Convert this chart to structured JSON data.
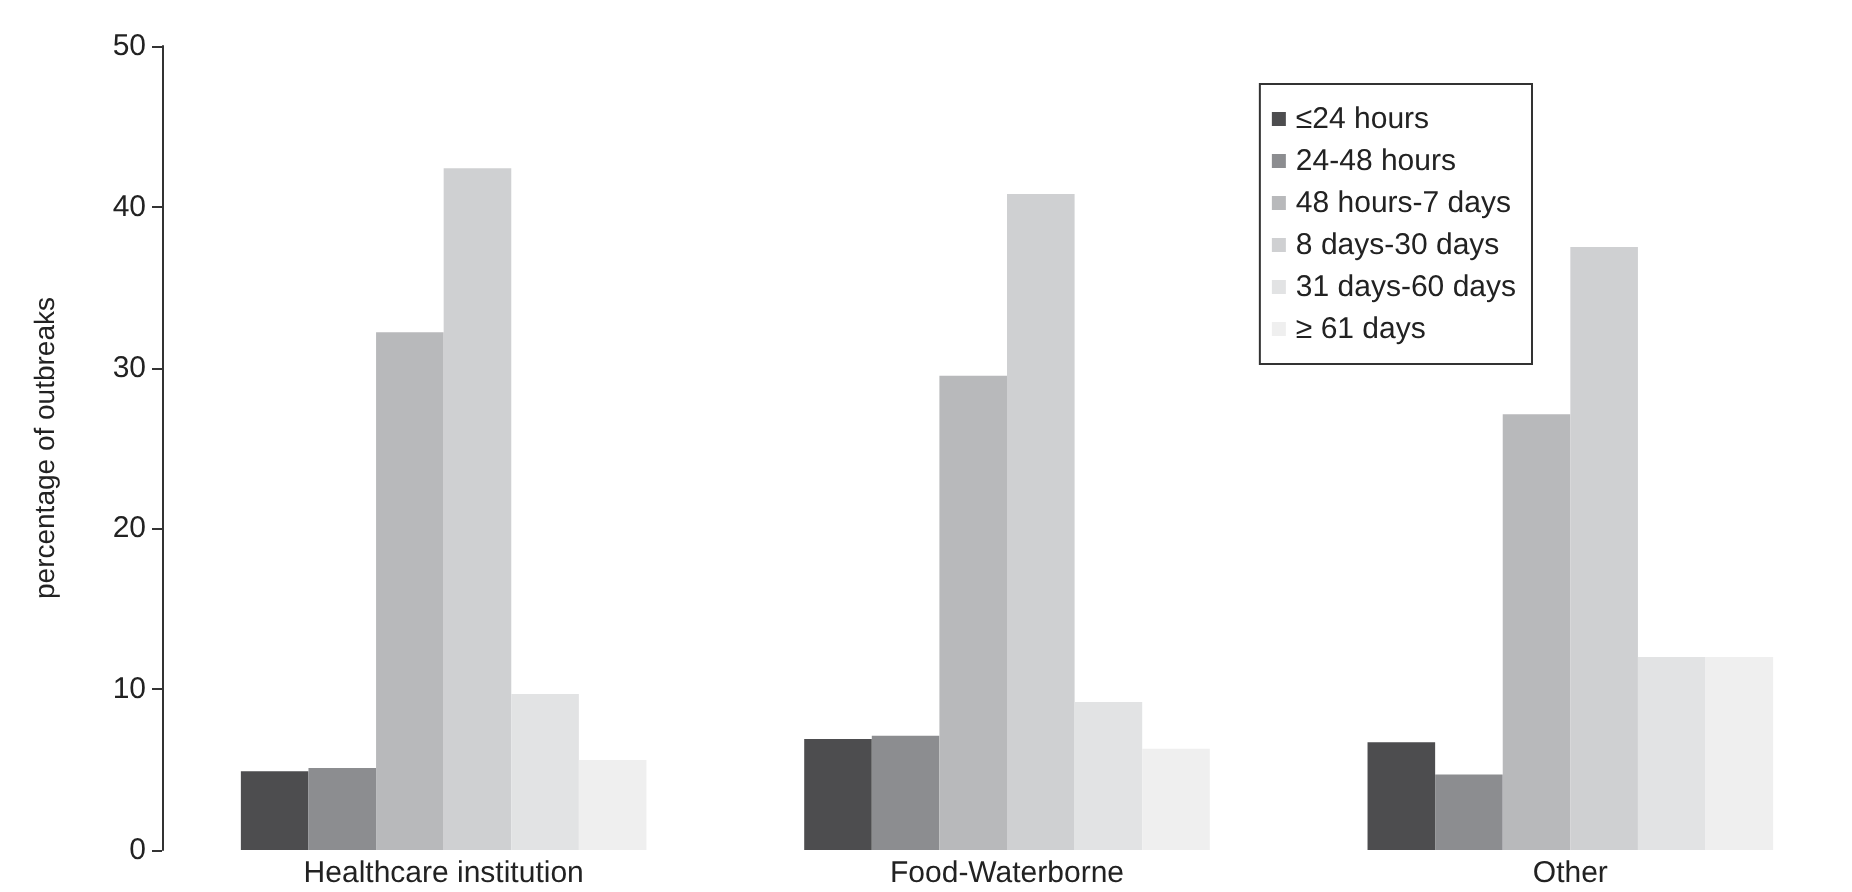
{
  "chart_data": {
    "type": "bar",
    "ylabel": "percentage of outbreaks",
    "categories": [
      "Healthcare institution",
      "Food-Waterborne",
      "Other"
    ],
    "series": [
      {
        "name": "≤24 hours",
        "color": "#4d4d4f",
        "values": [
          4.9,
          6.9,
          6.7
        ]
      },
      {
        "name": "24-48 hours",
        "color": "#8c8d90",
        "values": [
          5.1,
          7.1,
          4.7
        ]
      },
      {
        "name": "48 hours-7 days",
        "color": "#b8b9bb",
        "values": [
          32.2,
          29.5,
          27.1
        ]
      },
      {
        "name": "8 days-30 days",
        "color": "#cfd0d2",
        "values": [
          42.4,
          40.8,
          37.5
        ]
      },
      {
        "name": "31 days-60 days",
        "color": "#e2e3e4",
        "values": [
          9.7,
          9.2,
          12.0
        ]
      },
      {
        "name": "≥ 61 days",
        "color": "#efefef",
        "values": [
          5.6,
          6.3,
          12.0
        ]
      }
    ],
    "ylim": [
      0,
      50
    ],
    "yticks": [
      0,
      10,
      20,
      30,
      40,
      50
    ],
    "grid": false,
    "legend": "top right"
  }
}
